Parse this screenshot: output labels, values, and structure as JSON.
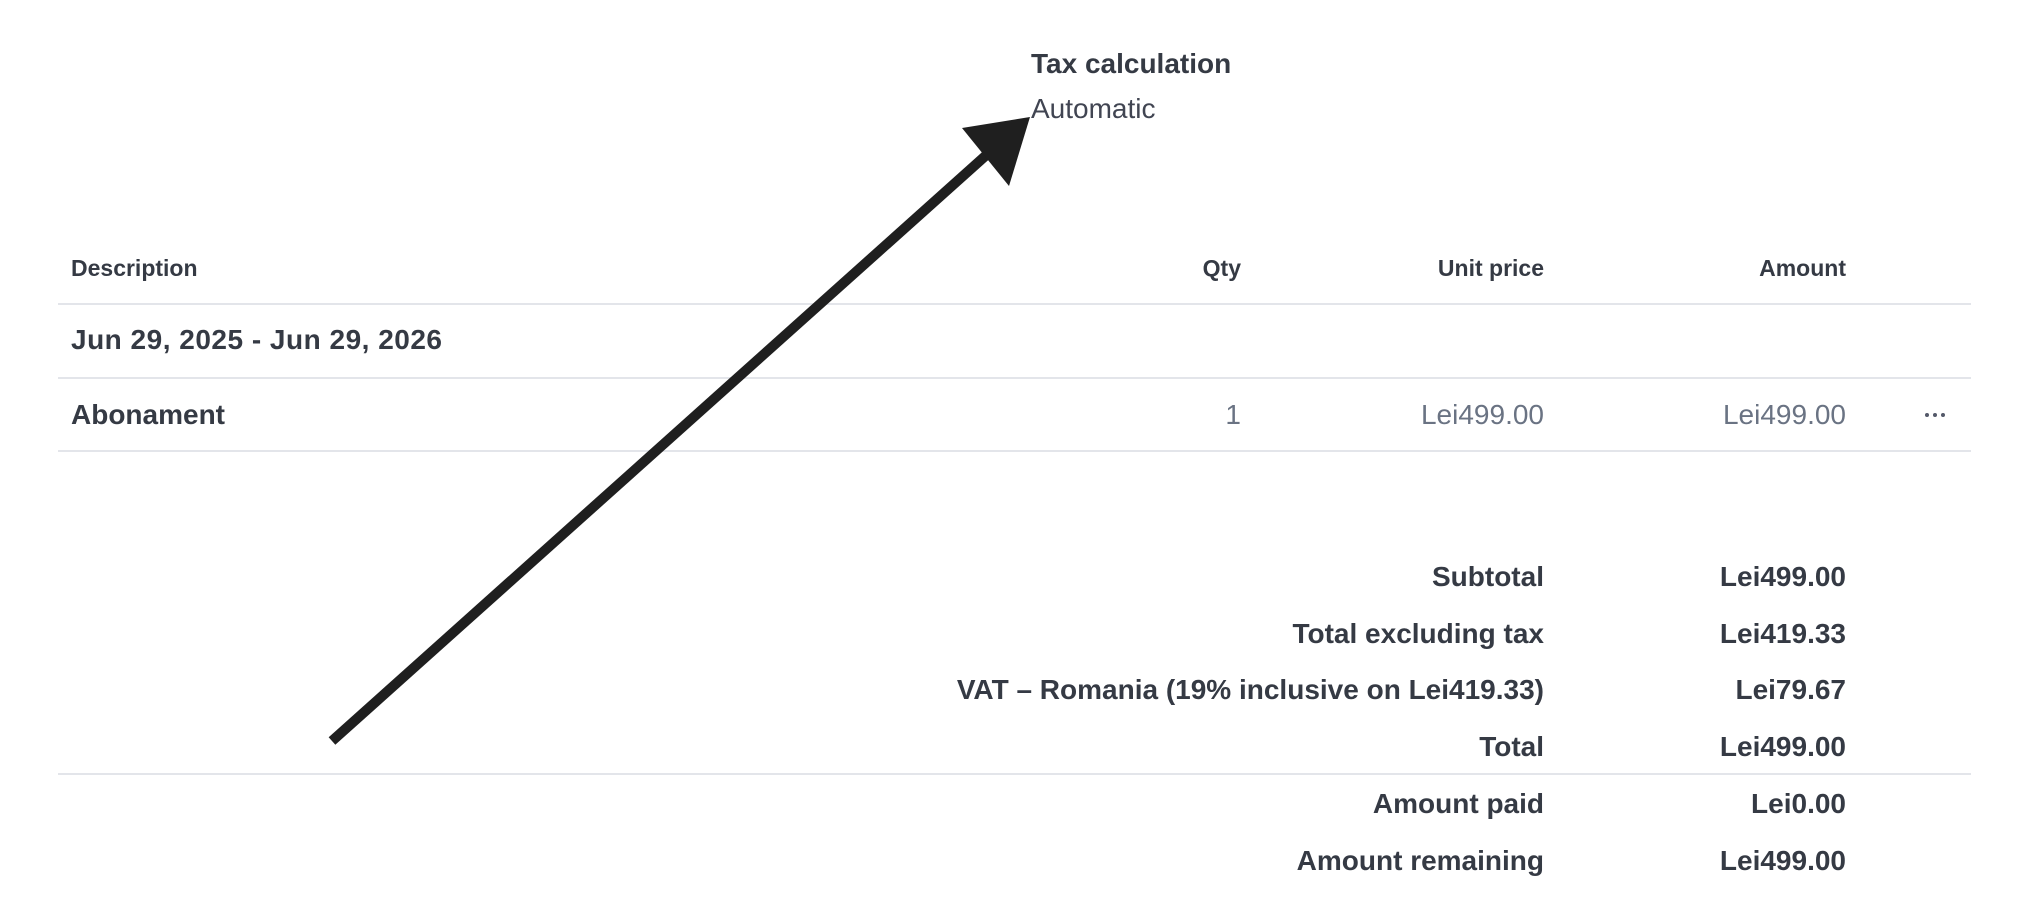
{
  "tax": {
    "title": "Tax calculation",
    "value": "Automatic"
  },
  "table": {
    "headers": {
      "description": "Description",
      "qty": "Qty",
      "unit_price": "Unit price",
      "amount": "Amount"
    },
    "period": "Jun 29, 2025 - Jun 29, 2026",
    "rows": [
      {
        "description": "Abonament",
        "qty": "1",
        "unit_price": "Lei499.00",
        "amount": "Lei499.00"
      }
    ],
    "more_icon": "ellipsis-horizontal-icon"
  },
  "summary": [
    {
      "label": "Subtotal",
      "value": "Lei499.00"
    },
    {
      "label": "Total excluding tax",
      "value": "Lei419.33"
    },
    {
      "label": "VAT – Romania (19% inclusive on Lei419.33)",
      "value": "Lei79.67"
    },
    {
      "label": "Total",
      "value": "Lei499.00"
    },
    {
      "label": "Amount paid",
      "value": "Lei0.00"
    },
    {
      "label": "Amount remaining",
      "value": "Lei499.00"
    }
  ],
  "annotation": {
    "icon": "annotation-arrow-icon",
    "color": "#1f1f1f"
  }
}
